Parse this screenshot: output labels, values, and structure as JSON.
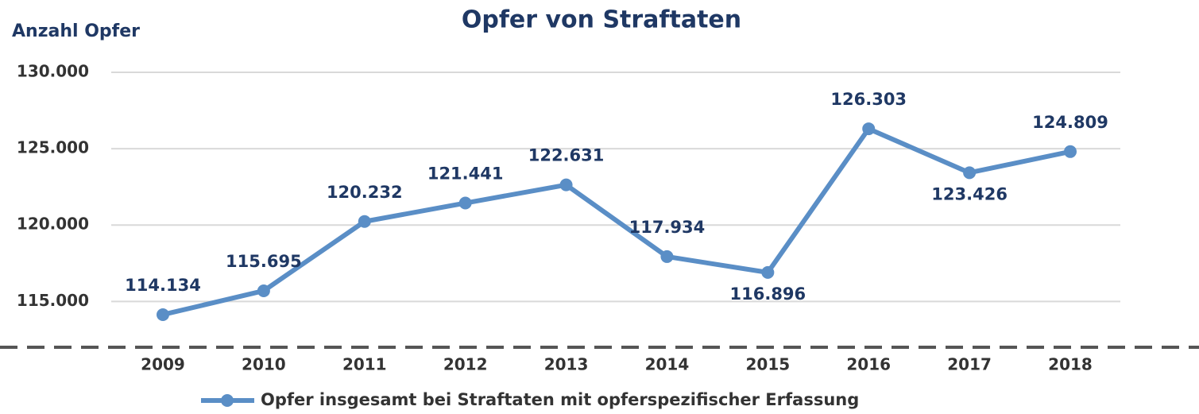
{
  "chart_data": {
    "type": "line",
    "title": "Opfer von Straftaten",
    "y_label": "Anzahl Opfer",
    "categories": [
      "2009",
      "2010",
      "2011",
      "2012",
      "2013",
      "2014",
      "2015",
      "2016",
      "2017",
      "2018"
    ],
    "series": [
      {
        "name": "Opfer insgesamt bei Straftaten mit opferspezifischer Erfassung",
        "color": "#5a8ec6",
        "values": [
          114134,
          115695,
          120232,
          121441,
          122631,
          117934,
          116896,
          126303,
          123426,
          124809
        ],
        "value_labels": [
          "114.134",
          "115.695",
          "120.232",
          "121.441",
          "122.631",
          "117.934",
          "116.896",
          "126.303",
          "123.426",
          "124.809"
        ]
      }
    ],
    "ylim": [
      112000,
      130000
    ],
    "yticks": [
      {
        "value": 115000,
        "label": "115.000"
      },
      {
        "value": 120000,
        "label": "120.000"
      },
      {
        "value": 125000,
        "label": "125.000"
      },
      {
        "value": 130000,
        "label": "130.000"
      }
    ],
    "grid": true
  }
}
